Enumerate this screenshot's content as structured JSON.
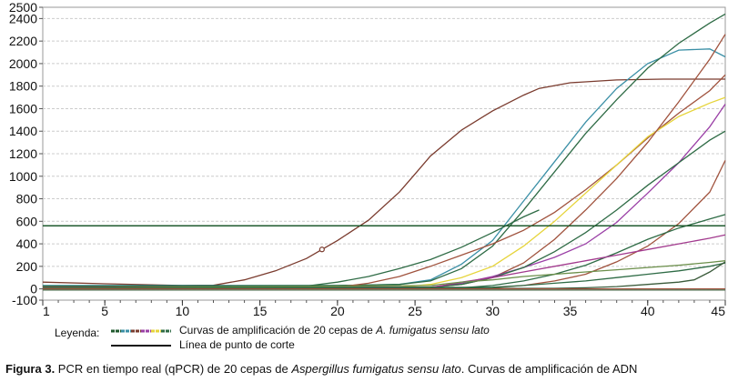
{
  "chart_data": {
    "type": "line",
    "xlim": [
      1,
      45
    ],
    "ylim": [
      -100,
      2500
    ],
    "x_ticks": [
      1,
      5,
      10,
      15,
      20,
      25,
      30,
      35,
      40,
      45
    ],
    "x_tick_labels": [
      "1",
      "5",
      "10",
      "15",
      "20",
      "25",
      "30",
      "35",
      "40",
      "45"
    ],
    "y_ticks": [
      -100,
      0,
      200,
      400,
      600,
      800,
      1000,
      1200,
      1400,
      1600,
      1800,
      2000,
      2200,
      2400,
      2500
    ],
    "y_tick_labels": [
      "-100",
      "0",
      "200",
      "400",
      "600",
      "800",
      "1000",
      "1200",
      "1400",
      "1600",
      "1800",
      "2000",
      "2200",
      "2400",
      "2500"
    ],
    "grid": "horizontal dashed",
    "threshold": {
      "y": 560,
      "color": "#1f5a2e"
    },
    "series": [
      {
        "color": "#7a3b2e",
        "marker_x": 19,
        "points": [
          [
            1,
            60
          ],
          [
            5,
            45
          ],
          [
            10,
            30
          ],
          [
            12,
            32
          ],
          [
            14,
            80
          ],
          [
            16,
            160
          ],
          [
            18,
            270
          ],
          [
            19,
            350
          ],
          [
            20,
            430
          ],
          [
            22,
            610
          ],
          [
            24,
            860
          ],
          [
            25,
            1020
          ],
          [
            26,
            1180
          ],
          [
            28,
            1410
          ],
          [
            30,
            1580
          ],
          [
            32,
            1720
          ],
          [
            33,
            1780
          ],
          [
            35,
            1830
          ],
          [
            38,
            1855
          ],
          [
            41,
            1862
          ],
          [
            45,
            1862
          ]
        ]
      },
      {
        "color": "#3a8fa6",
        "points": [
          [
            1,
            30
          ],
          [
            20,
            30
          ],
          [
            24,
            40
          ],
          [
            26,
            80
          ],
          [
            28,
            220
          ],
          [
            30,
            430
          ],
          [
            32,
            780
          ],
          [
            34,
            1130
          ],
          [
            36,
            1480
          ],
          [
            38,
            1780
          ],
          [
            40,
            2000
          ],
          [
            42,
            2120
          ],
          [
            44,
            2130
          ],
          [
            45,
            2060
          ]
        ]
      },
      {
        "color": "#2e6b45",
        "points": [
          [
            1,
            25
          ],
          [
            20,
            30
          ],
          [
            24,
            40
          ],
          [
            26,
            70
          ],
          [
            28,
            180
          ],
          [
            30,
            380
          ],
          [
            32,
            700
          ],
          [
            34,
            1040
          ],
          [
            36,
            1380
          ],
          [
            38,
            1680
          ],
          [
            40,
            1960
          ],
          [
            42,
            2180
          ],
          [
            44,
            2360
          ],
          [
            45,
            2440
          ]
        ]
      },
      {
        "color": "#2e6b45",
        "points": [
          [
            1,
            20
          ],
          [
            18,
            25
          ],
          [
            20,
            60
          ],
          [
            22,
            110
          ],
          [
            24,
            180
          ],
          [
            26,
            260
          ],
          [
            28,
            370
          ],
          [
            30,
            500
          ],
          [
            32,
            640
          ],
          [
            33,
            700
          ]
        ]
      },
      {
        "color": "#a0523d",
        "points": [
          [
            1,
            15
          ],
          [
            20,
            15
          ],
          [
            22,
            50
          ],
          [
            24,
            110
          ],
          [
            26,
            200
          ],
          [
            28,
            300
          ],
          [
            30,
            400
          ],
          [
            32,
            520
          ],
          [
            34,
            680
          ],
          [
            36,
            880
          ],
          [
            38,
            1100
          ],
          [
            40,
            1340
          ],
          [
            42,
            1560
          ],
          [
            44,
            1760
          ],
          [
            45,
            1900
          ]
        ]
      },
      {
        "color": "#e6d43a",
        "points": [
          [
            1,
            10
          ],
          [
            24,
            15
          ],
          [
            26,
            40
          ],
          [
            28,
            100
          ],
          [
            30,
            200
          ],
          [
            32,
            380
          ],
          [
            34,
            600
          ],
          [
            36,
            850
          ],
          [
            38,
            1100
          ],
          [
            40,
            1350
          ],
          [
            42,
            1530
          ],
          [
            44,
            1650
          ],
          [
            45,
            1700
          ]
        ]
      },
      {
        "color": "#a0523d",
        "points": [
          [
            1,
            10
          ],
          [
            26,
            15
          ],
          [
            28,
            40
          ],
          [
            30,
            100
          ],
          [
            32,
            230
          ],
          [
            34,
            440
          ],
          [
            36,
            700
          ],
          [
            38,
            980
          ],
          [
            40,
            1300
          ],
          [
            42,
            1660
          ],
          [
            44,
            2040
          ],
          [
            45,
            2260
          ]
        ]
      },
      {
        "color": "#9a3fa6",
        "points": [
          [
            1,
            10
          ],
          [
            26,
            15
          ],
          [
            28,
            50
          ],
          [
            30,
            110
          ],
          [
            32,
            190
          ],
          [
            34,
            280
          ],
          [
            36,
            400
          ],
          [
            38,
            590
          ],
          [
            40,
            850
          ],
          [
            42,
            1120
          ],
          [
            44,
            1440
          ],
          [
            45,
            1640
          ]
        ]
      },
      {
        "color": "#2e6b45",
        "points": [
          [
            1,
            10
          ],
          [
            26,
            15
          ],
          [
            28,
            40
          ],
          [
            30,
            100
          ],
          [
            32,
            190
          ],
          [
            34,
            330
          ],
          [
            36,
            500
          ],
          [
            38,
            700
          ],
          [
            40,
            920
          ],
          [
            42,
            1120
          ],
          [
            44,
            1320
          ],
          [
            45,
            1400
          ]
        ]
      },
      {
        "color": "#a0523d",
        "points": [
          [
            1,
            5
          ],
          [
            30,
            10
          ],
          [
            32,
            30
          ],
          [
            34,
            70
          ],
          [
            36,
            130
          ],
          [
            38,
            240
          ],
          [
            40,
            380
          ],
          [
            42,
            580
          ],
          [
            44,
            860
          ],
          [
            45,
            1140
          ]
        ]
      },
      {
        "color": "#2e6b45",
        "points": [
          [
            1,
            5
          ],
          [
            28,
            10
          ],
          [
            30,
            30
          ],
          [
            32,
            70
          ],
          [
            34,
            130
          ],
          [
            36,
            210
          ],
          [
            38,
            320
          ],
          [
            40,
            440
          ],
          [
            42,
            540
          ],
          [
            44,
            620
          ],
          [
            45,
            660
          ]
        ]
      },
      {
        "color": "#a23a8e",
        "points": [
          [
            1,
            5
          ],
          [
            26,
            10
          ],
          [
            28,
            60
          ],
          [
            30,
            100
          ],
          [
            32,
            150
          ],
          [
            34,
            200
          ],
          [
            36,
            250
          ],
          [
            38,
            300
          ],
          [
            40,
            350
          ],
          [
            42,
            400
          ],
          [
            44,
            450
          ],
          [
            45,
            480
          ]
        ]
      },
      {
        "color": "#6b8f4a",
        "points": [
          [
            1,
            5
          ],
          [
            26,
            30
          ],
          [
            28,
            60
          ],
          [
            30,
            80
          ],
          [
            32,
            110
          ],
          [
            34,
            130
          ],
          [
            36,
            150
          ],
          [
            38,
            170
          ],
          [
            40,
            190
          ],
          [
            42,
            210
          ],
          [
            44,
            235
          ],
          [
            45,
            250
          ]
        ]
      },
      {
        "color": "#2e6b45",
        "points": [
          [
            1,
            5
          ],
          [
            30,
            15
          ],
          [
            32,
            30
          ],
          [
            34,
            50
          ],
          [
            36,
            70
          ],
          [
            38,
            100
          ],
          [
            40,
            130
          ],
          [
            42,
            160
          ],
          [
            44,
            200
          ],
          [
            45,
            230
          ]
        ]
      },
      {
        "color": "#3a5a3a",
        "points": [
          [
            1,
            0
          ],
          [
            34,
            5
          ],
          [
            36,
            10
          ],
          [
            38,
            20
          ],
          [
            40,
            40
          ],
          [
            42,
            60
          ],
          [
            43,
            80
          ],
          [
            44,
            150
          ],
          [
            45,
            240
          ]
        ]
      },
      {
        "color": "#a0523d",
        "points": [
          [
            1,
            0
          ],
          [
            45,
            0
          ]
        ]
      },
      {
        "color": "#4a6a4a",
        "points": [
          [
            1,
            -10
          ],
          [
            45,
            -10
          ]
        ]
      }
    ]
  },
  "legend": {
    "label": "Leyenda:",
    "curves_text_prefix": "Curvas de amplificación de 20 cepas de ",
    "curves_text_italic": "A. fumigatus sensu lato",
    "cutoff_text": "Línea de punto de corte",
    "swatch_colors": [
      "#1f5a2e",
      "#3a8fa6",
      "#7a3b2e",
      "#9a3fa6",
      "#e6d43a",
      "#2e6b45"
    ]
  },
  "caption": {
    "label": "Figura 3.",
    "text_before": " PCR en tiempo real (qPCR) de 20 cepas de ",
    "italic": "Aspergillus fumigatus sensu lato",
    "text_after": ". Curvas de amplificación de ADN"
  }
}
